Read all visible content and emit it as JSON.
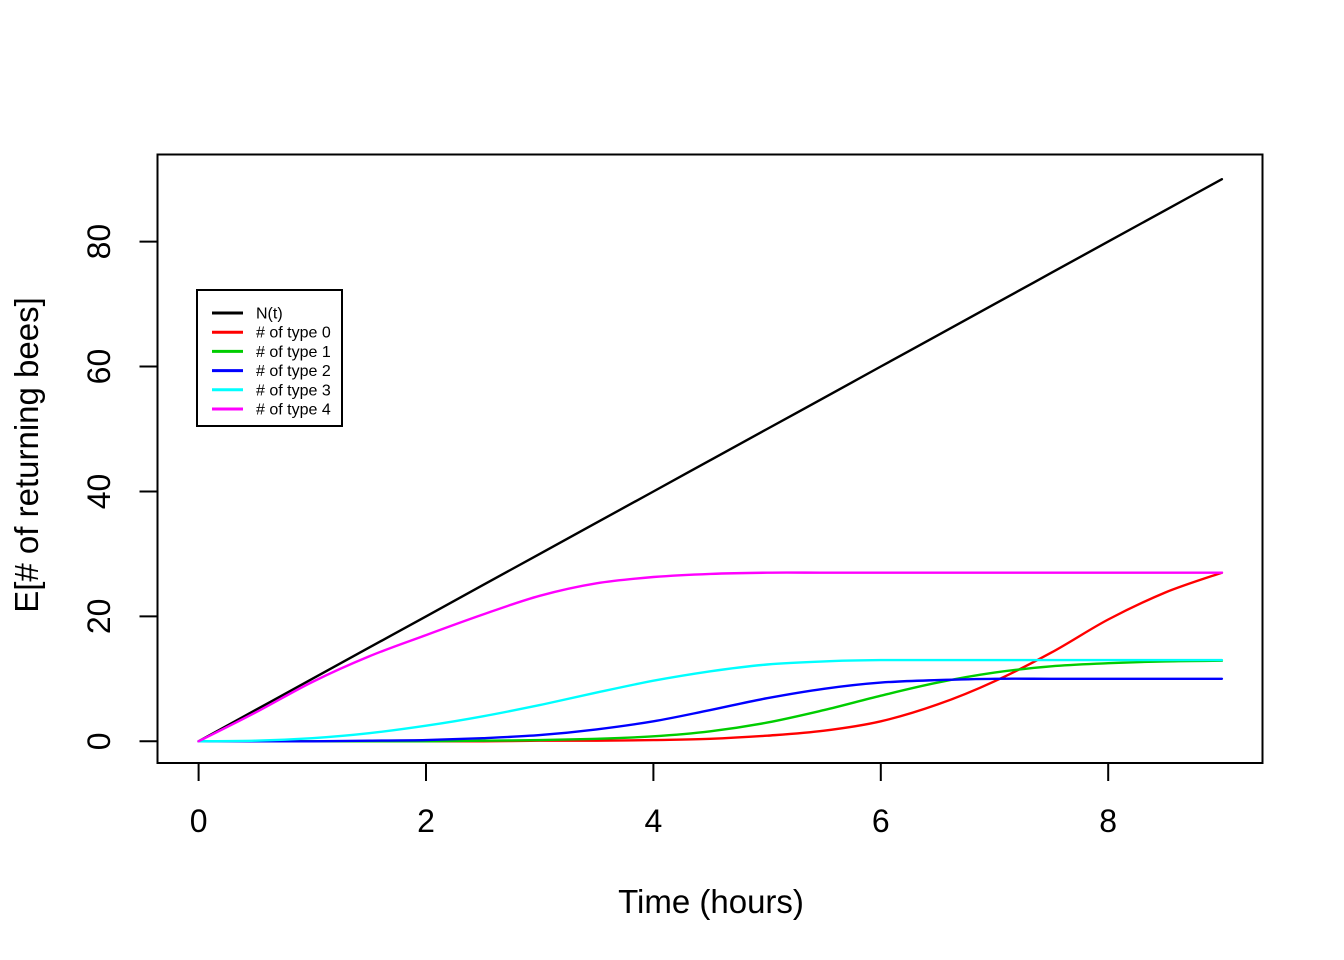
{
  "figure": {
    "background": "#ffffff",
    "border_color": "#000000"
  },
  "chart_data": {
    "type": "line",
    "title": "",
    "xlabel": "Time (hours)",
    "ylabel": "E[# of returning bees]",
    "xlim": [
      0,
      9
    ],
    "ylim": [
      0,
      90
    ],
    "x_ticks": [
      0,
      2,
      4,
      6,
      8
    ],
    "y_ticks": [
      0,
      20,
      40,
      60,
      80
    ],
    "grid": false,
    "legend_position": "upper-left-inset",
    "x": [
      0,
      0.5,
      1,
      1.5,
      2,
      2.5,
      3,
      3.5,
      4,
      4.5,
      5,
      5.5,
      6,
      6.5,
      7,
      7.5,
      8,
      8.5,
      9
    ],
    "series": [
      {
        "name": "N(t)",
        "color": "#000000",
        "values": [
          0,
          5,
          10,
          15,
          20,
          25,
          30,
          35,
          40,
          45,
          50,
          55,
          60,
          65,
          70,
          75,
          80,
          85,
          90
        ]
      },
      {
        "name": "# of type 0",
        "color": "#FF0000",
        "values": [
          0,
          0,
          0,
          0,
          0,
          0,
          0.1,
          0.1,
          0.2,
          0.4,
          0.9,
          1.7,
          3.2,
          5.9,
          9.6,
          14.2,
          19.5,
          23.8,
          27
        ]
      },
      {
        "name": "# of type 1",
        "color": "#00CD00",
        "values": [
          0,
          0,
          0,
          0,
          0,
          0.1,
          0.2,
          0.4,
          0.8,
          1.6,
          3,
          5,
          7.3,
          9.4,
          11,
          12,
          12.5,
          12.8,
          12.9
        ]
      },
      {
        "name": "# of type 2",
        "color": "#0000FF",
        "values": [
          0,
          0,
          0,
          0.1,
          0.2,
          0.5,
          1,
          1.9,
          3.2,
          5,
          6.9,
          8.4,
          9.4,
          9.8,
          10,
          10,
          10,
          10,
          10
        ]
      },
      {
        "name": "# of type 3",
        "color": "#00FFFF",
        "values": [
          0,
          0.1,
          0.5,
          1.3,
          2.5,
          4,
          5.8,
          7.8,
          9.7,
          11.2,
          12.3,
          12.8,
          13,
          13,
          13,
          13,
          13,
          13,
          13
        ]
      },
      {
        "name": "# of type 4",
        "color": "#FF00FF",
        "values": [
          0,
          4.6,
          9.5,
          13.6,
          17,
          20.3,
          23.3,
          25.3,
          26.3,
          26.8,
          27,
          27,
          27,
          27,
          27,
          27,
          27,
          27,
          27
        ]
      }
    ]
  }
}
